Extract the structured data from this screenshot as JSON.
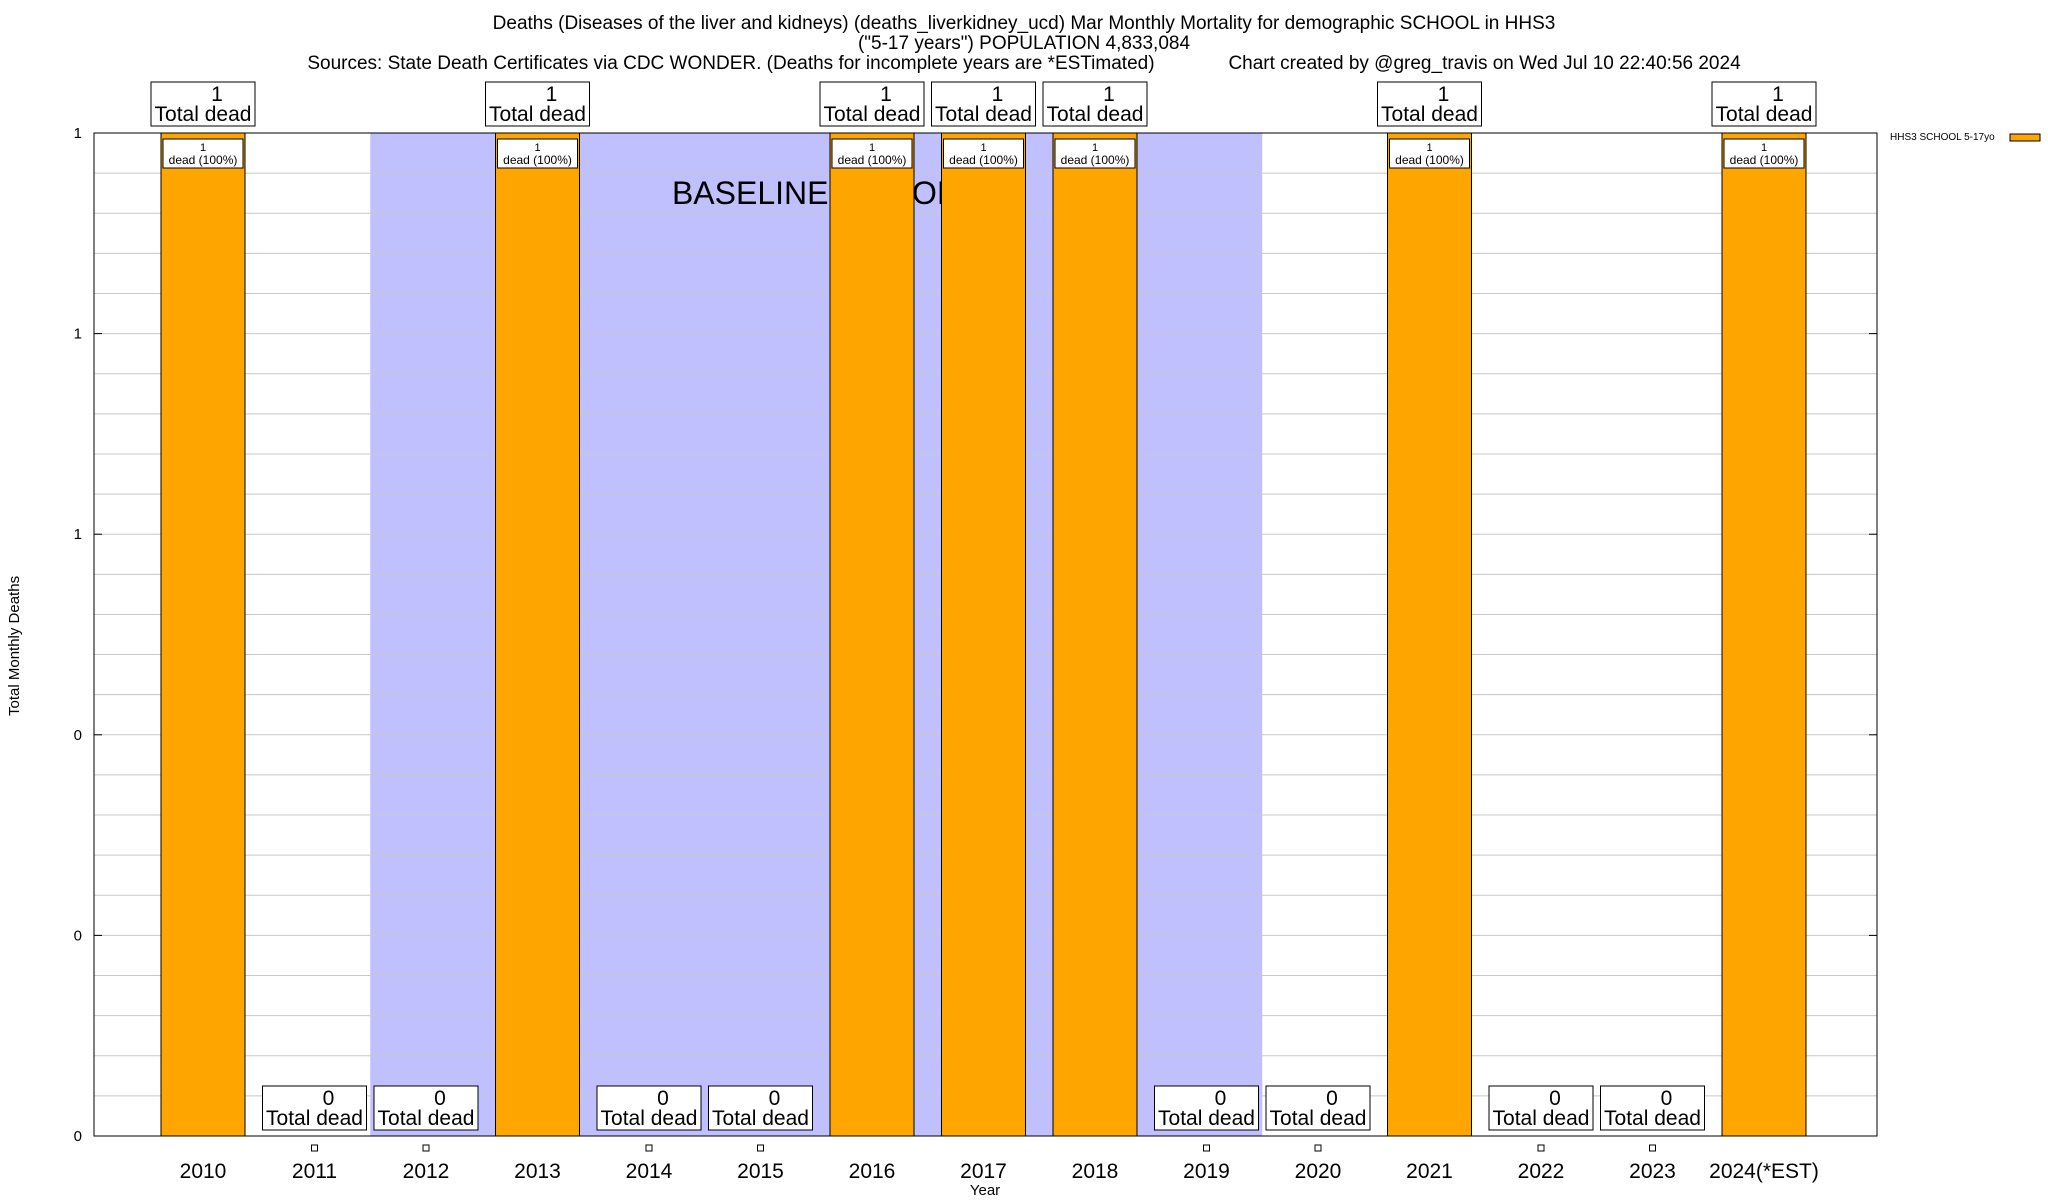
{
  "titles": {
    "line1": "Deaths (Diseases of the liver and kidneys) (deaths_liverkidney_ucd) Mar Monthly Mortality for demographic SCHOOL in HHS3",
    "line2": "(\"5-17 years\") POPULATION 4,833,084",
    "line3": "Sources: State Death Certificates via CDC WONDER. (Deaths for incomplete years are *ESTimated)              Chart created by @greg_travis on Wed Jul 10 22:40:56 2024"
  },
  "chart_data": {
    "type": "bar",
    "title": "Deaths (Diseases of the liver and kidneys) (deaths_liverkidney_ucd) Mar Monthly Mortality for demographic SCHOOL in HHS3",
    "xlabel": "Year",
    "ylabel": "Total Monthly Deaths",
    "ylim": [
      0,
      1
    ],
    "categories": [
      "2010",
      "2011",
      "2012",
      "2013",
      "2014",
      "2015",
      "2016",
      "2017",
      "2018",
      "2019",
      "2020",
      "2021",
      "2022",
      "2023",
      "2024(*EST)"
    ],
    "values": [
      1,
      0,
      0,
      1,
      0,
      0,
      1,
      1,
      1,
      0,
      0,
      1,
      0,
      0,
      1
    ],
    "ytick_labels": [
      "0",
      "0",
      "0",
      "1",
      "1",
      "1"
    ],
    "total_label": "Total dead",
    "inner_label": "dead (100%)",
    "baseline_label": "BASELINE PERIOD",
    "baseline_start_index": 2,
    "baseline_end_index": 9,
    "series": [
      {
        "name": "HHS3 SCHOOL 5-17yo",
        "values": [
          1,
          0,
          0,
          1,
          0,
          0,
          1,
          1,
          1,
          0,
          0,
          1,
          0,
          0,
          1
        ]
      }
    ],
    "legend_position": "top-right",
    "colors": {
      "bar": "#ffa500",
      "baseline": "#c0c0ff",
      "grid": "#c8c8c8"
    }
  }
}
